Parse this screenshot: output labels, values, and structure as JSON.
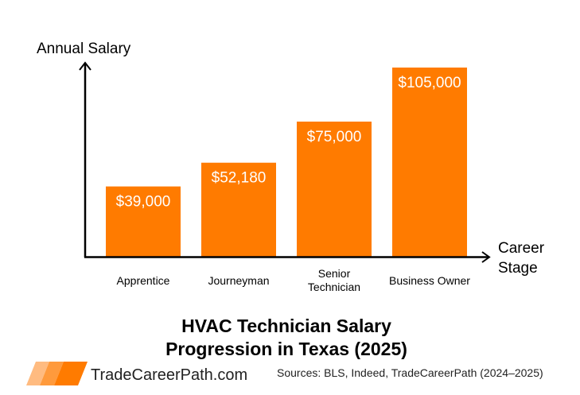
{
  "chart_data": {
    "type": "bar",
    "title": "HVAC Technician Salary Progression in Texas (2025)",
    "title_lines": [
      "HVAC Technician Salary",
      "Progression in Texas (2025)"
    ],
    "ylabel": "Annual Salary",
    "xlabel_lines": [
      "Career",
      "Stage"
    ],
    "categories": [
      "Apprentice",
      "Journeyman",
      "Senior Technician",
      "Business Owner"
    ],
    "category_lines": [
      [
        "Apprentice"
      ],
      [
        "Journeyman"
      ],
      [
        "Senior",
        "Technician"
      ],
      [
        "Business Owner"
      ]
    ],
    "values": [
      39000,
      52180,
      75000,
      105000
    ],
    "data_labels": [
      "$39,000",
      "$52,180",
      "$75,000",
      "$105,000"
    ],
    "ylim": [
      0,
      105000
    ],
    "grid": false,
    "legend": "none",
    "bar_color": "#ff7b00"
  },
  "footer": {
    "brand": "TradeCareerPath.com",
    "sources": "Sources: BLS, Indeed, TradeCareerPath (2024–2025)",
    "logo_colors": [
      "#ffbb80",
      "#ff9a3c",
      "#ff7b00"
    ]
  }
}
